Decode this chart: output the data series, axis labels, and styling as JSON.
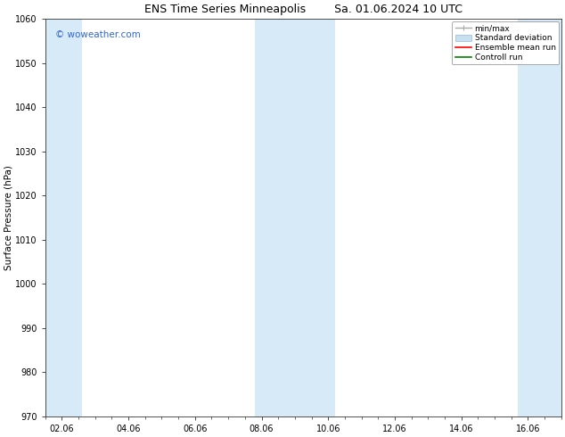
{
  "title_left": "ENS Time Series Minneapolis",
  "title_right": "Sa. 01.06.2024 10 UTC",
  "ylabel": "Surface Pressure (hPa)",
  "ylim": [
    970,
    1060
  ],
  "yticks": [
    970,
    980,
    990,
    1000,
    1010,
    1020,
    1030,
    1040,
    1050,
    1060
  ],
  "xlim_start": 1.5,
  "xlim_end": 17.0,
  "xtick_labels": [
    "02.06",
    "04.06",
    "06.06",
    "08.06",
    "10.06",
    "12.06",
    "14.06",
    "16.06"
  ],
  "xtick_positions": [
    2,
    4,
    6,
    8,
    10,
    12,
    14,
    16
  ],
  "shaded_bands": [
    {
      "x_start": 1.5,
      "x_end": 2.6
    },
    {
      "x_start": 7.8,
      "x_end": 10.2
    },
    {
      "x_start": 15.7,
      "x_end": 17.0
    }
  ],
  "shaded_color": "#d6eaf8",
  "background_color": "#ffffff",
  "watermark": "© woweather.com",
  "watermark_color": "#3366cc",
  "legend_entries": [
    {
      "label": "min/max",
      "color": "#aaaaaa",
      "style": "errorbar"
    },
    {
      "label": "Standard deviation",
      "color": "#c8dff0",
      "style": "fill"
    },
    {
      "label": "Ensemble mean run",
      "color": "#ff0000",
      "style": "line"
    },
    {
      "label": "Controll run",
      "color": "#008000",
      "style": "line"
    }
  ],
  "title_fontsize": 9,
  "tick_fontsize": 7,
  "ylabel_fontsize": 7.5,
  "legend_fontsize": 6.5,
  "watermark_fontsize": 7.5
}
